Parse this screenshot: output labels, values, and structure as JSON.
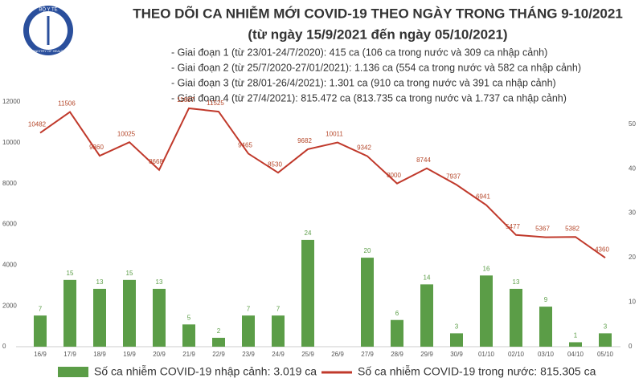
{
  "chart_data": {
    "type": "combo",
    "title": "THEO DÕI CA NHIỄM MỚI COVID-19 THEO NGÀY TRONG THÁNG 9-10/2021",
    "subtitle": "(từ ngày 15/9/2021 đến ngày 05/10/2021)",
    "logo_top": "BỘ Y TẾ",
    "logo_bottom": "MINISTRY OF HEALTH",
    "annotations": [
      "- Giai đoạn 1 (từ 23/01-24/7/2020): 415 ca (106 ca trong nước và 309 ca nhập cảnh)",
      "- Giai đoạn 2 (từ 25/7/2020-27/01/2021): 1.136 ca (554 ca trong nước và 582 ca nhập cảnh)",
      "- Giai đoạn 3 (từ 28/01-26/4/2021): 1.301 ca (910 ca trong nước và 391 ca nhập cảnh)",
      "- Giai đoạn 4 (từ 27/4/2021): 815.472 ca (813.735 ca trong nước và 1.737 ca nhập cảnh)"
    ],
    "categories": [
      "16/9",
      "17/9",
      "18/9",
      "19/9",
      "20/9",
      "21/9",
      "22/9",
      "23/9",
      "24/9",
      "25/9",
      "26/9",
      "27/9",
      "28/9",
      "29/9",
      "30/9",
      "01/10",
      "02/10",
      "03/10",
      "04/10",
      "05/10"
    ],
    "series": [
      {
        "name": "Số ca nhiễm COVID-19 nhập cảnh: 3.019 ca",
        "type": "bar",
        "axis": "y2",
        "color": "#5b9d47",
        "values": [
          7,
          15,
          13,
          15,
          13,
          5,
          2,
          7,
          7,
          24,
          null,
          20,
          6,
          14,
          3,
          16,
          13,
          9,
          1,
          3
        ]
      },
      {
        "name": "Số ca nhiễm COVID-19 trong nước: 815.305 ca",
        "type": "line",
        "axis": "y",
        "color": "#c0392b",
        "values": [
          10482,
          11506,
          9360,
          10025,
          8668,
          11687,
          11525,
          9465,
          8530,
          9682,
          10011,
          9342,
          8000,
          8744,
          7937,
          6941,
          5477,
          5367,
          5382,
          4360
        ]
      }
    ],
    "ylim": [
      0,
      12000
    ],
    "yticks": [
      0,
      2000,
      4000,
      6000,
      8000,
      10000,
      12000
    ],
    "y2lim": [
      0,
      55
    ],
    "y2ticks": [
      0,
      10,
      20,
      30,
      40,
      50
    ],
    "grid": false
  }
}
